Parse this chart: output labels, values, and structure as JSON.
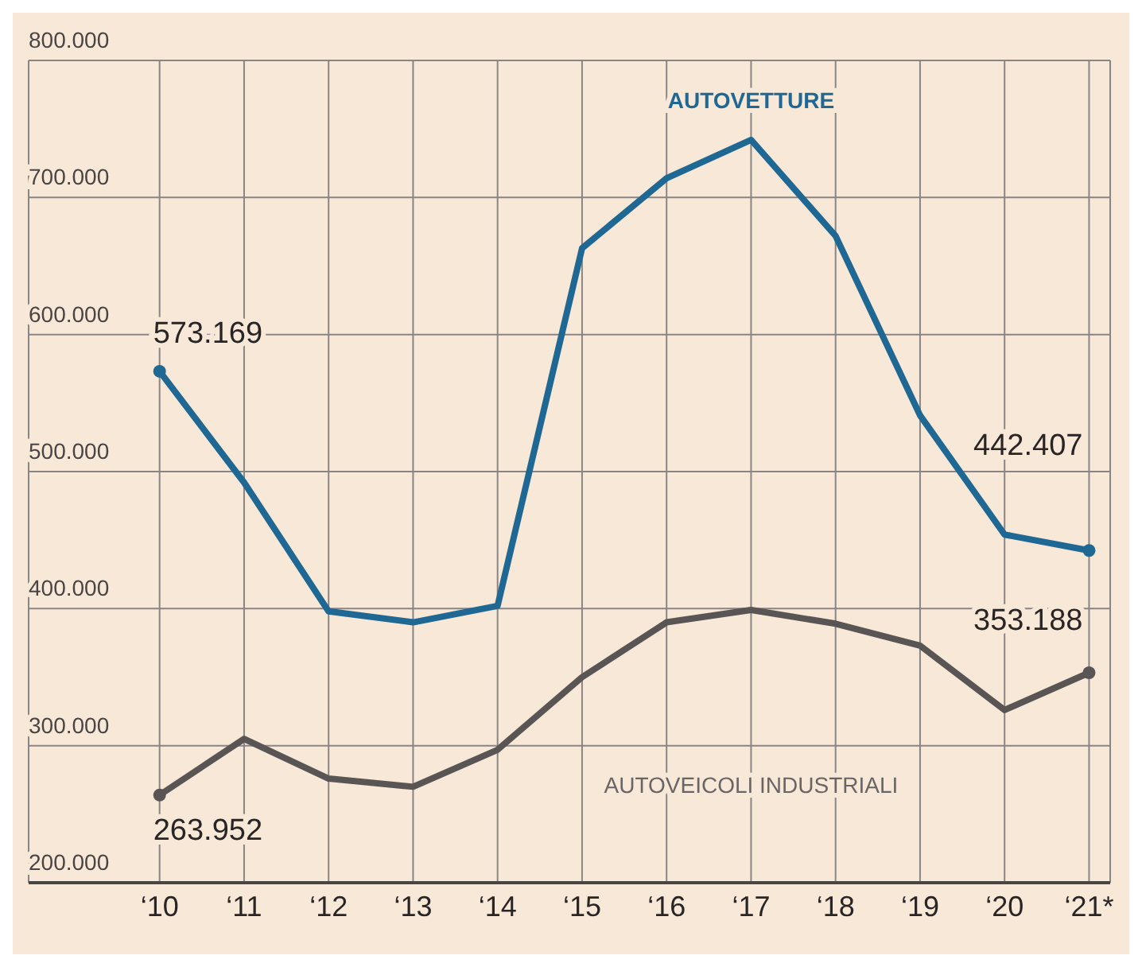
{
  "chart_data": {
    "type": "line",
    "categories": [
      "‘10",
      "‘11",
      "‘12",
      "‘13",
      "‘14",
      "‘15",
      "‘16",
      "‘17",
      "‘18",
      "‘19",
      "‘20",
      "‘21*"
    ],
    "series": [
      {
        "name": "AUTOVETTURE",
        "color": "#1f6894",
        "values": [
          573169,
          492000,
          398000,
          390000,
          402000,
          663000,
          714000,
          742000,
          672000,
          541000,
          454000,
          442407
        ],
        "value_labels": [
          "573.169",
          null,
          null,
          null,
          null,
          null,
          null,
          null,
          null,
          null,
          null,
          "442.407"
        ]
      },
      {
        "name": "AUTOVEICOLI INDUSTRIALI",
        "color": "#5a5555",
        "values": [
          263952,
          305000,
          276000,
          270000,
          297000,
          350000,
          390000,
          399000,
          389000,
          373000,
          326000,
          353188
        ],
        "value_labels": [
          "263.952",
          null,
          null,
          null,
          null,
          null,
          null,
          null,
          null,
          null,
          null,
          "353.188"
        ]
      }
    ],
    "ylim": [
      200000,
      800000
    ],
    "yticks": [
      {
        "value": 200000,
        "label": "200.000"
      },
      {
        "value": 300000,
        "label": "300.000"
      },
      {
        "value": 400000,
        "label": "400.000"
      },
      {
        "value": 500000,
        "label": "500.000"
      },
      {
        "value": 600000,
        "label": "600.000"
      },
      {
        "value": 700000,
        "label": "700.000"
      },
      {
        "value": 800000,
        "label": "800.000"
      }
    ],
    "grid": true,
    "marker": "none",
    "line_style": "solid"
  }
}
